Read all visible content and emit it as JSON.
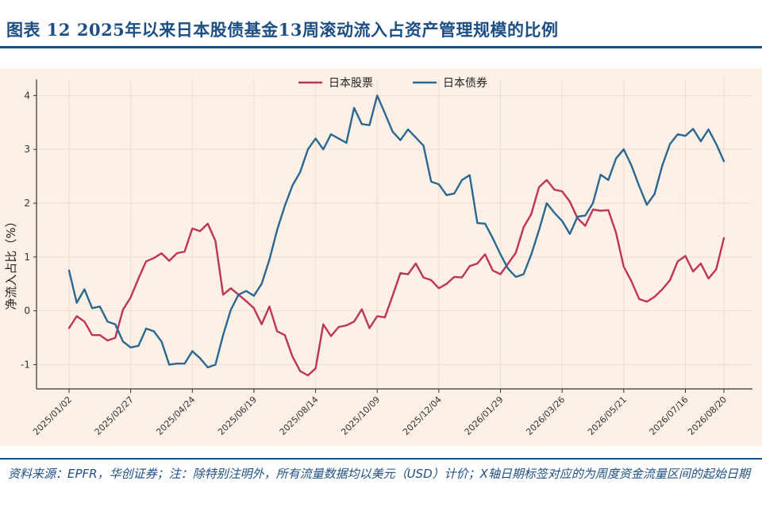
{
  "title": "图表 12 2025年以来日本股债基金13周滚动流入占资产管理规模的比例",
  "source_note": "资料来源：EPFR，华创证券；注：除特别注明外，所有流量数据均以美元（USD）计价；X轴日期标签对应的为周度资金流量区间的起始日期",
  "colors": {
    "title": "#1d4f86",
    "plot_bg": "#fdf0e6",
    "equity": "#c0335a",
    "bond": "#2a6891",
    "axis": "#333333",
    "grid": "#f1dccb"
  },
  "chart_data": {
    "type": "line",
    "title": "",
    "xlabel": "",
    "ylabel": "净流入占比（%）",
    "ylim": [
      -1.45,
      4.3
    ],
    "yticks": [
      -1,
      0,
      1,
      2,
      3,
      4
    ],
    "grid": true,
    "legend_position": "top-center",
    "x_tick_labels": [
      "2025/01/02",
      "2025/02/27",
      "2025/04/24",
      "2025/06/19",
      "2025/08/14",
      "2025/10/09",
      "2025/12/04",
      "2026/01/29",
      "2026/03/26",
      "2026/05/21",
      "2026/07/16",
      "2026/08/20"
    ],
    "x_tick_week_index": [
      0,
      8,
      16,
      24,
      32,
      40,
      48,
      56,
      64,
      72,
      80,
      85
    ],
    "series": [
      {
        "name": "日本股票",
        "color": "#c0335a",
        "values": [
          -0.32,
          -0.1,
          -0.2,
          -0.45,
          -0.45,
          -0.55,
          -0.5,
          0.02,
          0.25,
          0.6,
          0.92,
          0.98,
          1.07,
          0.93,
          1.07,
          1.1,
          1.53,
          1.48,
          1.62,
          1.3,
          0.3,
          0.42,
          0.3,
          0.18,
          0.05,
          -0.25,
          0.08,
          -0.38,
          -0.45,
          -0.85,
          -1.12,
          -1.2,
          -1.07,
          -0.25,
          -0.47,
          -0.3,
          -0.27,
          -0.2,
          0.03,
          -0.32,
          -0.1,
          -0.12,
          0.28,
          0.7,
          0.68,
          0.88,
          0.62,
          0.57,
          0.42,
          0.5,
          0.63,
          0.62,
          0.83,
          0.88,
          1.05,
          0.75,
          0.68,
          0.88,
          1.08,
          1.55,
          1.8,
          2.3,
          2.43,
          2.25,
          2.22,
          2.03,
          1.72,
          1.58,
          1.88,
          1.86,
          1.87,
          1.45,
          0.82,
          0.55,
          0.22,
          0.17,
          0.26,
          0.4,
          0.57,
          0.92,
          1.02,
          0.73,
          0.88,
          0.6,
          0.77,
          1.35
        ]
      },
      {
        "name": "日本债券",
        "color": "#2a6891",
        "values": [
          0.75,
          0.15,
          0.4,
          0.05,
          0.08,
          -0.2,
          -0.25,
          -0.57,
          -0.68,
          -0.65,
          -0.33,
          -0.38,
          -0.57,
          -1.0,
          -0.98,
          -0.98,
          -0.75,
          -0.88,
          -1.05,
          -1.0,
          -0.45,
          0.02,
          0.3,
          0.37,
          0.28,
          0.5,
          0.95,
          1.5,
          1.95,
          2.33,
          2.58,
          3.0,
          3.2,
          3.0,
          3.28,
          3.2,
          3.12,
          3.77,
          3.47,
          3.45,
          4.0,
          3.67,
          3.33,
          3.17,
          3.37,
          3.22,
          3.07,
          2.4,
          2.35,
          2.15,
          2.18,
          2.43,
          2.52,
          1.63,
          1.62,
          1.35,
          1.05,
          0.78,
          0.63,
          0.68,
          1.05,
          1.5,
          2.0,
          1.82,
          1.67,
          1.43,
          1.75,
          1.77,
          2.0,
          2.53,
          2.43,
          2.83,
          3.0,
          2.7,
          2.32,
          1.97,
          2.17,
          2.7,
          3.1,
          3.28,
          3.25,
          3.38,
          3.15,
          3.37,
          3.1,
          2.78
        ]
      }
    ]
  }
}
